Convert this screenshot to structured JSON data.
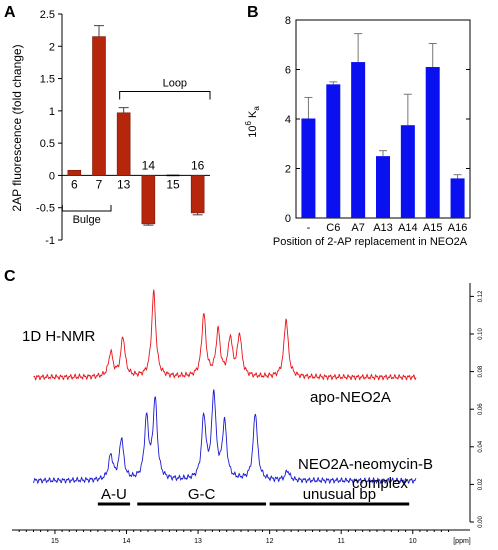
{
  "panels": {
    "a_label": "A",
    "b_label": "B",
    "c_label": "C"
  },
  "chart_data": [
    {
      "panel": "A",
      "type": "bar",
      "ylabel": "2AP fluorescence (fold change)",
      "ylim": [
        -1,
        2.5
      ],
      "yticks": [
        -1,
        -0.5,
        0,
        0.5,
        1,
        1.5,
        2,
        2.5
      ],
      "color": "#b5260d",
      "categories": [
        "6",
        "7",
        "13",
        "14",
        "15",
        "16"
      ],
      "values": [
        0.08,
        2.15,
        0.97,
        -0.75,
        0.0,
        -0.58
      ],
      "errors": [
        0.0,
        0.17,
        0.08,
        0.02,
        0.0,
        0.03
      ],
      "groups": [
        {
          "label": "Bulge",
          "members": [
            "6",
            "7"
          ]
        },
        {
          "label": "Loop",
          "members": [
            "13",
            "14",
            "15",
            "16"
          ]
        }
      ]
    },
    {
      "panel": "B",
      "type": "bar",
      "xlabel": "Position of 2-AP replacement in NEO2A",
      "ylabel": "10",
      "ylabel_sup": "6",
      "ylabel_tail": " K",
      "ylabel_sub": "a",
      "ylim": [
        0,
        8
      ],
      "yticks": [
        0,
        2,
        4,
        6,
        8
      ],
      "color": "#0a10f0",
      "categories": [
        "-",
        "C6",
        "A7",
        "A13",
        "A14",
        "A15",
        "A16"
      ],
      "values": [
        4.02,
        5.4,
        6.3,
        2.5,
        3.75,
        6.1,
        1.6
      ],
      "errors": [
        0.85,
        0.1,
        1.15,
        0.22,
        1.25,
        0.95,
        0.15
      ]
    },
    {
      "panel": "C",
      "type": "line",
      "title": "1D H-NMR",
      "xlabel": "[ppm]",
      "xlim": [
        15.6,
        9.2
      ],
      "xticks": [
        15,
        14,
        13,
        12,
        11,
        10
      ],
      "ylim": [
        0,
        0.125
      ],
      "yticks": [
        0.0,
        0.02,
        0.04,
        0.06,
        0.08,
        0.1,
        0.12
      ],
      "series": [
        {
          "name": "apo-NEO2A",
          "color": "#e8141b",
          "baseline": 0.077,
          "peaks": [
            {
              "ppm": 14.22,
              "h": 0.013
            },
            {
              "ppm": 14.05,
              "h": 0.021
            },
            {
              "ppm": 13.62,
              "h": 0.045
            },
            {
              "ppm": 12.92,
              "h": 0.033
            },
            {
              "ppm": 12.72,
              "h": 0.024
            },
            {
              "ppm": 12.55,
              "h": 0.02
            },
            {
              "ppm": 12.42,
              "h": 0.022
            },
            {
              "ppm": 11.77,
              "h": 0.031
            }
          ]
        },
        {
          "name": "NEO2A-neomycin-B\ncomplex",
          "label_line1": "NEO2A-neomycin-B",
          "label_line2": "complex",
          "color": "#1a1ad0",
          "baseline": 0.022,
          "peaks": [
            {
              "ppm": 14.22,
              "h": 0.013
            },
            {
              "ppm": 14.07,
              "h": 0.022
            },
            {
              "ppm": 13.72,
              "h": 0.032
            },
            {
              "ppm": 13.6,
              "h": 0.042
            },
            {
              "ppm": 12.92,
              "h": 0.033
            },
            {
              "ppm": 12.78,
              "h": 0.045
            },
            {
              "ppm": 12.63,
              "h": 0.03
            },
            {
              "ppm": 12.2,
              "h": 0.036
            },
            {
              "ppm": 11.75,
              "h": 0.005
            }
          ]
        }
      ],
      "regions": [
        {
          "label": "A-U",
          "from": 14.4,
          "to": 13.95
        },
        {
          "label": "G-C",
          "from": 13.85,
          "to": 12.05
        },
        {
          "label": "unusual bp",
          "from": 12.0,
          "to": 10.05
        }
      ]
    }
  ]
}
